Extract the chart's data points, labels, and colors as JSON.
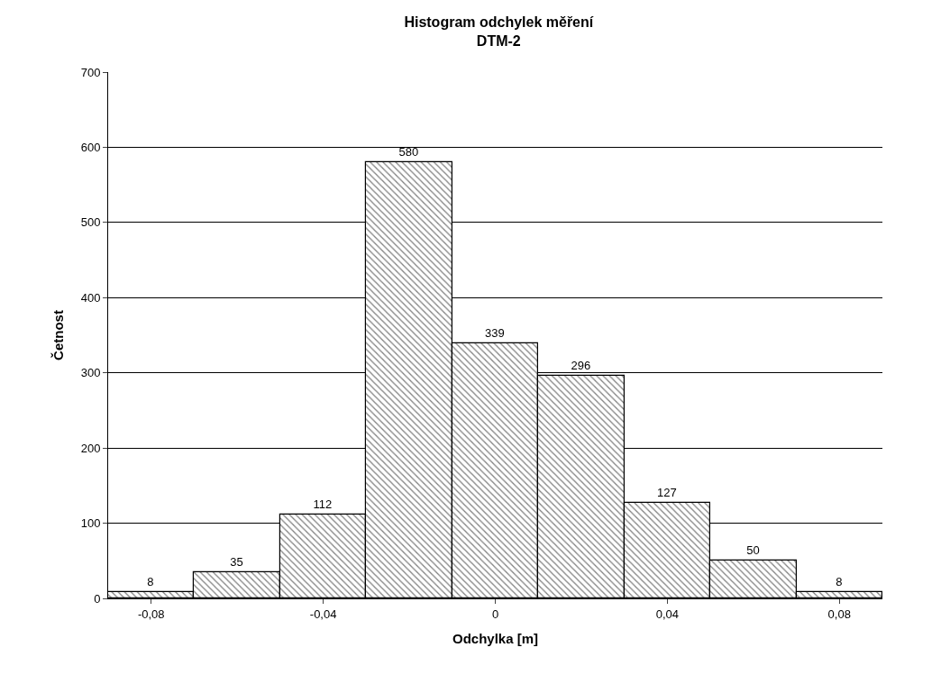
{
  "chart_data": {
    "type": "histogram",
    "title": "Histogram odchylek měření",
    "subtitle": "DTM-2",
    "xlabel": "Odchylka [m]",
    "ylabel": "Četnost",
    "bins": [
      -0.09,
      -0.07,
      -0.05,
      -0.03,
      -0.01,
      0.01,
      0.03,
      0.05,
      0.07,
      0.09
    ],
    "values": [
      8,
      35,
      112,
      580,
      339,
      296,
      127,
      50,
      8
    ],
    "color": "#000000",
    "xlim": [
      -0.09,
      0.09
    ],
    "xticks": [
      {
        "value": -0.08,
        "label": "-0,08"
      },
      {
        "value": -0.04,
        "label": "-0,04"
      },
      0,
      {
        "value": 0.04,
        "label": "0,04"
      },
      {
        "value": 0.08,
        "label": "0,08"
      }
    ],
    "ylim": [
      0,
      700
    ],
    "yticks": [
      0,
      100,
      200,
      300,
      400,
      500,
      600,
      700
    ],
    "grid": "y",
    "data_labels": true
  }
}
